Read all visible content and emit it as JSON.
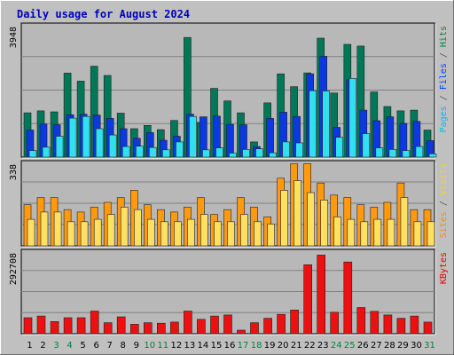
{
  "chart_data": {
    "type": "bar",
    "title": "Daily usage for August 2024",
    "categories": [
      "1",
      "2",
      "3",
      "4",
      "5",
      "6",
      "7",
      "8",
      "9",
      "10",
      "11",
      "12",
      "13",
      "14",
      "15",
      "16",
      "17",
      "18",
      "19",
      "20",
      "21",
      "22",
      "23",
      "24",
      "25",
      "26",
      "27",
      "28",
      "29",
      "30",
      "31"
    ],
    "weekend_days": [
      "3",
      "4",
      "10",
      "11",
      "17",
      "18",
      "24",
      "25",
      "31"
    ],
    "panels": [
      {
        "id": "hits-files-pages",
        "max_label": "3948",
        "ymax": 3948,
        "axis_label_parts": [
          {
            "text": "Pages",
            "color": "#00c0e0"
          },
          {
            "text": " / ",
            "color": "#555555"
          },
          {
            "text": "Files",
            "color": "#0040ff"
          },
          {
            "text": " / ",
            "color": "#555555"
          },
          {
            "text": "Hits",
            "color": "#008040"
          }
        ],
        "series": [
          {
            "name": "Hits",
            "color": "#007858",
            "values": [
              1340,
              1400,
              1370,
              2540,
              2300,
              2750,
              2470,
              1330,
              860,
              960,
              830,
              1110,
              3620,
              1050,
              2080,
              1700,
              1340,
              460,
              1640,
              2520,
              2130,
              2550,
              3600,
              1940,
              3410,
              3360,
              1970,
              1530,
              1400,
              1420,
              820
            ]
          },
          {
            "name": "Files",
            "color": "#0c38e0",
            "values": [
              820,
              1000,
              980,
              1280,
              1300,
              1270,
              1170,
              860,
              570,
              740,
              510,
              630,
              1300,
              1220,
              1240,
              990,
              980,
              320,
              1170,
              1360,
              1230,
              2520,
              3050,
              900,
              2340,
              1420,
              1100,
              1220,
              1020,
              1080,
              500
            ]
          },
          {
            "name": "Pages",
            "color": "#30e0f0",
            "values": [
              200,
              300,
              630,
              1180,
              1230,
              860,
              670,
              320,
              330,
              290,
              220,
              460,
              1230,
              220,
              280,
              120,
              230,
              250,
              130,
              460,
              430,
              2010,
              2000,
              600,
              2380,
              710,
              280,
              230,
              200,
              320,
              100
            ]
          }
        ]
      },
      {
        "id": "visits-sites",
        "max_label": "338",
        "ymax": 338,
        "axis_label_parts": [
          {
            "text": "Sites",
            "color": "#ff8c00"
          },
          {
            "text": " / ",
            "color": "#555555"
          },
          {
            "text": "Visits",
            "color": "#e8e000"
          }
        ],
        "series": [
          {
            "name": "Visits",
            "color": "#ff9a10",
            "values": [
              170,
              200,
              200,
              150,
              140,
              160,
              180,
              200,
              230,
              170,
              150,
              140,
              160,
              200,
              130,
              150,
              200,
              160,
              120,
              280,
              340,
              340,
              260,
              210,
              200,
              170,
              160,
              180,
              260,
              150,
              150
            ]
          },
          {
            "name": "Sites",
            "color": "#ffe060",
            "values": [
              110,
              140,
              140,
              100,
              100,
              110,
              130,
              160,
              150,
              110,
              100,
              100,
              110,
              130,
              100,
              100,
              130,
              100,
              90,
              230,
              270,
              220,
              190,
              120,
              110,
              100,
              110,
              110,
              200,
              100,
              100
            ]
          }
        ]
      },
      {
        "id": "kbytes",
        "max_label": "292708",
        "ymax": 292708,
        "axis_label_parts": [
          {
            "text": "KBytes",
            "color": "#e00000"
          }
        ],
        "series": [
          {
            "name": "KBytes",
            "color": "#ee1010",
            "values": [
              58000,
              64000,
              44000,
              58000,
              58000,
              82000,
              40000,
              61000,
              34000,
              40000,
              38000,
              42000,
              82000,
              52000,
              64000,
              68000,
              13000,
              40000,
              56000,
              70000,
              86000,
              250000,
              285000,
              78000,
              260000,
              95000,
              81000,
              68000,
              56000,
              64000,
              42000
            ]
          }
        ]
      }
    ]
  }
}
